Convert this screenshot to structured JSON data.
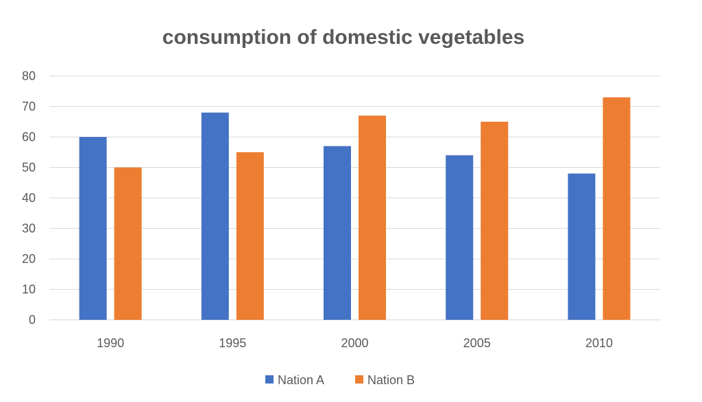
{
  "chart_data": {
    "type": "bar",
    "title": "consumption of domestic vegetables",
    "xlabel": "",
    "ylabel": "",
    "categories": [
      "1990",
      "1995",
      "2000",
      "2005",
      "2010"
    ],
    "series": [
      {
        "name": "Nation A",
        "color": "#4472c4",
        "values": [
          60,
          68,
          57,
          54,
          48
        ]
      },
      {
        "name": "Nation B",
        "color": "#ed7d31",
        "values": [
          50,
          55,
          67,
          65,
          73
        ]
      }
    ],
    "ylim": [
      0,
      80
    ],
    "yticks": [
      "0",
      "10",
      "20",
      "30",
      "40",
      "50",
      "60",
      "70",
      "80"
    ],
    "grid": true,
    "legend_position": "bottom"
  }
}
